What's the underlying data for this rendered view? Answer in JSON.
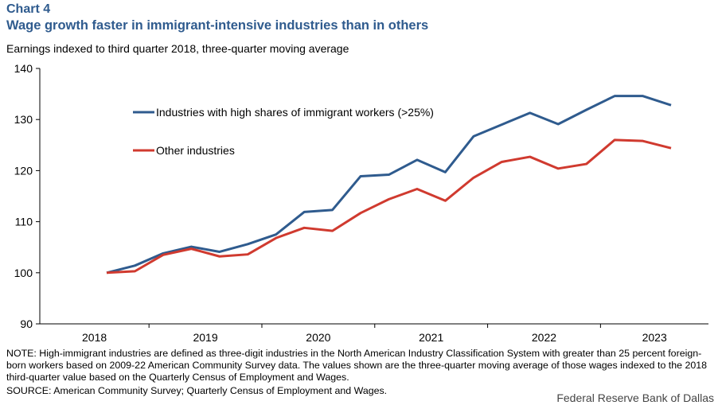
{
  "header": {
    "chart_label": "Chart 4",
    "title": "Wage growth faster in immigrant-intensive industries than in others",
    "subtitle": "Earnings indexed to third quarter 2018, three-quarter moving average"
  },
  "chart_data": {
    "type": "line",
    "title": "Wage growth faster in immigrant-intensive industries than in others",
    "ylabel": "Earnings indexed to third quarter 2018, three-quarter moving average",
    "xlabel": "",
    "ylim": [
      90,
      140
    ],
    "yticks": [
      90,
      100,
      110,
      120,
      130,
      140
    ],
    "year_labels": [
      "2018",
      "2019",
      "2020",
      "2021",
      "2022",
      "2023"
    ],
    "x": [
      "2018Q3",
      "2018Q4",
      "2019Q1",
      "2019Q2",
      "2019Q3",
      "2019Q4",
      "2020Q1",
      "2020Q2",
      "2020Q3",
      "2020Q4",
      "2021Q1",
      "2021Q2",
      "2021Q3",
      "2021Q4",
      "2022Q1",
      "2022Q2",
      "2022Q3",
      "2022Q4",
      "2023Q1",
      "2023Q2",
      "2023Q3"
    ],
    "series": [
      {
        "name": "Industries with high shares of immigrant workers (>25%)",
        "color": "#2f5b8e",
        "values": [
          100,
          101.4,
          103.8,
          105.1,
          104.1,
          105.6,
          107.5,
          111.9,
          112.3,
          118.9,
          119.2,
          122.1,
          119.7,
          126.7,
          129.0,
          131.3,
          129.1,
          131.9,
          134.6,
          134.6,
          132.8
        ]
      },
      {
        "name": "Other industries",
        "color": "#d03a2f",
        "values": [
          100,
          100.3,
          103.5,
          104.7,
          103.2,
          103.6,
          106.8,
          108.8,
          108.2,
          111.7,
          114.4,
          116.4,
          114.1,
          118.6,
          121.7,
          122.7,
          120.4,
          121.3,
          126.0,
          125.8,
          124.4
        ]
      }
    ],
    "grid": false,
    "legend": "top-left"
  },
  "footer": {
    "note": "NOTE: High-immigrant industries are defined as three-digit industries in the North American Industry Classification System with greater than 25 percent foreign-born workers based on 2009-22 American Community Survey data. The values shown are the three-quarter moving average of those wages indexed to the 2018 third-quarter value based on the Quarterly Census of Employment and Wages.",
    "source": "SOURCE: American Community Survey; Quarterly Census of Employment and Wages.",
    "brand": "Federal Reserve Bank of Dallas"
  }
}
